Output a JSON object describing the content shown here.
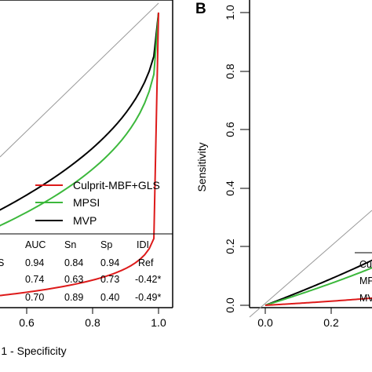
{
  "chart_data": [
    {
      "type": "line",
      "panel": "A",
      "xlabel": "1 - Specificity",
      "ylabel": "",
      "xlim": [
        0,
        1
      ],
      "ylim": [
        0,
        1
      ],
      "x_tick_labels": [
        "0.6",
        "0.8",
        "1.0"
      ],
      "reference_line": "diagonal",
      "series": [
        {
          "name": "Culprit-MBF+GLS",
          "color": "#dd1a1a",
          "auc": 0.94
        },
        {
          "name": "MPSI",
          "color": "#3cb83c",
          "auc": 0.74
        },
        {
          "name": "MVP",
          "color": "#000000",
          "auc": 0.7
        }
      ],
      "legend": {
        "placement": "bottom-right",
        "entries": [
          "Culprit-MBF+GLS",
          "MPSI",
          "MVP"
        ]
      },
      "table": {
        "headers": [
          "AUC",
          "Sn",
          "Sp",
          "IDI"
        ],
        "rows": [
          {
            "label": "S",
            "AUC": "0.94",
            "Sn": "0.84",
            "Sp": "0.94",
            "IDI": "Ref"
          },
          {
            "label": "",
            "AUC": "0.74",
            "Sn": "0.63",
            "Sp": "0.73",
            "IDI": "-0.42*"
          },
          {
            "label": "",
            "AUC": "0.70",
            "Sn": "0.89",
            "Sp": "0.40",
            "IDI": "-0.49*"
          }
        ]
      }
    },
    {
      "type": "line",
      "panel": "B",
      "panel_label": "B",
      "xlabel": "",
      "ylabel": "Sensitivity",
      "xlim": [
        0,
        1
      ],
      "ylim": [
        0,
        1
      ],
      "y_tick_labels": [
        "0.0",
        "0.2",
        "0.4",
        "0.6",
        "0.8",
        "1.0"
      ],
      "x_tick_labels": [
        "0.0",
        "0.2"
      ],
      "reference_line": "diagonal",
      "series": [
        {
          "name": "Culprit-MBF+GLS",
          "color": "#dd1a1a",
          "auc": 0.94
        },
        {
          "name": "MPSI",
          "color": "#3cb83c",
          "auc": 0.74
        },
        {
          "name": "MVP",
          "color": "#000000",
          "auc": 0.7
        }
      ],
      "table": {
        "rows": [
          {
            "label": "Cu"
          },
          {
            "label": "MP"
          },
          {
            "label": "MV"
          }
        ]
      }
    }
  ]
}
